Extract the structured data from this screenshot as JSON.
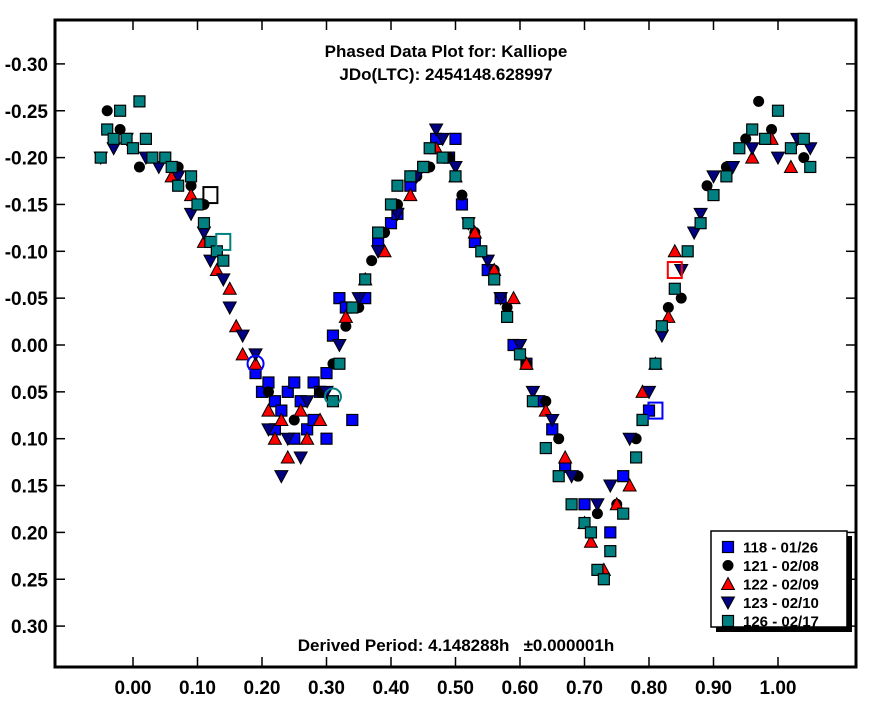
{
  "chart_data": {
    "type": "scatter",
    "title": "Phased Data Plot for: Kalliope",
    "subtitle": "JDo(LTC): 2454148.628997",
    "annotation": "Derived Period: 4.148288h   ±0.000001h",
    "xlabel": "",
    "ylabel": "",
    "xlim": [
      -0.12,
      1.12
    ],
    "ylim": [
      -0.345,
      0.345
    ],
    "y_inverted": true,
    "grid": false,
    "legend_position": "bottom-right",
    "x_ticks": [
      "0.00",
      "0.10",
      "0.20",
      "0.30",
      "0.40",
      "0.50",
      "0.60",
      "0.70",
      "0.80",
      "0.90",
      "1.00"
    ],
    "x_tick_values": [
      0.0,
      0.1,
      0.2,
      0.3,
      0.4,
      0.5,
      0.6,
      0.7,
      0.8,
      0.9,
      1.0
    ],
    "y_ticks": [
      "-0.30",
      "-0.25",
      "-0.20",
      "-0.15",
      "-0.10",
      "-0.05",
      "0.00",
      "0.05",
      "0.10",
      "0.15",
      "0.20",
      "0.25",
      "0.30"
    ],
    "y_tick_values": [
      -0.3,
      -0.25,
      -0.2,
      -0.15,
      -0.1,
      -0.05,
      0.0,
      0.05,
      0.1,
      0.15,
      0.2,
      0.25,
      0.3
    ],
    "series": [
      {
        "name": "118 - 01/26",
        "marker": "square",
        "color": "#0000ff",
        "x": [
          0.19,
          0.2,
          0.21,
          0.22,
          0.22,
          0.23,
          0.24,
          0.25,
          0.25,
          0.26,
          0.27,
          0.28,
          0.28,
          0.29,
          0.3,
          0.3,
          0.31,
          0.32,
          0.33,
          0.34,
          0.36,
          0.38,
          0.4,
          0.41,
          0.43,
          0.45,
          0.47,
          0.49,
          0.5,
          0.51,
          0.53,
          0.55,
          0.57,
          0.59,
          0.61,
          0.63,
          0.65,
          0.67,
          0.7,
          0.74,
          0.76,
          0.79,
          0.8
        ],
        "y": [
          0.03,
          0.05,
          0.04,
          0.09,
          0.06,
          0.07,
          0.05,
          0.1,
          0.04,
          0.06,
          0.09,
          0.04,
          0.08,
          0.05,
          0.03,
          0.1,
          -0.01,
          -0.05,
          -0.04,
          0.08,
          -0.05,
          -0.11,
          -0.13,
          -0.14,
          -0.17,
          -0.19,
          -0.22,
          -0.2,
          -0.22,
          -0.15,
          -0.11,
          -0.08,
          -0.05,
          0.0,
          0.02,
          0.06,
          0.09,
          0.13,
          0.17,
          0.2,
          0.14,
          0.08,
          0.07
        ]
      },
      {
        "name": "121 - 02/08",
        "marker": "circle",
        "color": "#000000",
        "x": [
          -0.04,
          -0.03,
          -0.02,
          0.0,
          0.01,
          0.03,
          0.05,
          0.07,
          0.09,
          0.11,
          0.21,
          0.25,
          0.29,
          0.31,
          0.33,
          0.35,
          0.37,
          0.39,
          0.41,
          0.44,
          0.46,
          0.49,
          0.51,
          0.53,
          0.56,
          0.58,
          0.61,
          0.64,
          0.66,
          0.69,
          0.72,
          0.75,
          0.78,
          0.81,
          0.83,
          0.85,
          0.86,
          0.89,
          0.92,
          0.95,
          0.97,
          0.99,
          1.02,
          1.04
        ],
        "y": [
          -0.25,
          -0.22,
          -0.23,
          -0.21,
          -0.19,
          -0.2,
          -0.2,
          -0.19,
          -0.17,
          -0.15,
          0.05,
          0.08,
          0.05,
          0.02,
          -0.02,
          -0.04,
          -0.09,
          -0.12,
          -0.15,
          -0.18,
          -0.19,
          -0.2,
          -0.16,
          -0.12,
          -0.08,
          -0.04,
          0.02,
          0.06,
          0.1,
          0.14,
          0.18,
          0.17,
          0.1,
          0.02,
          -0.04,
          -0.05,
          -0.1,
          -0.17,
          -0.19,
          -0.22,
          -0.26,
          -0.23,
          -0.21,
          -0.2
        ]
      },
      {
        "name": "122 - 02/09",
        "marker": "triangle-up",
        "color": "#ff0000",
        "x": [
          0.06,
          0.09,
          0.11,
          0.13,
          0.15,
          0.16,
          0.17,
          0.19,
          0.21,
          0.22,
          0.23,
          0.24,
          0.26,
          0.27,
          0.29,
          0.33,
          0.36,
          0.39,
          0.43,
          0.47,
          0.5,
          0.53,
          0.56,
          0.59,
          0.61,
          0.64,
          0.67,
          0.7,
          0.71,
          0.73,
          0.75,
          0.77,
          0.79,
          0.81,
          0.83,
          0.84,
          0.96,
          0.99,
          1.02
        ],
        "y": [
          -0.18,
          -0.16,
          -0.11,
          -0.08,
          -0.06,
          -0.02,
          0.01,
          0.02,
          0.07,
          0.1,
          0.08,
          0.12,
          0.07,
          0.1,
          0.08,
          -0.03,
          -0.07,
          -0.1,
          -0.16,
          -0.21,
          -0.18,
          -0.12,
          -0.08,
          -0.05,
          0.02,
          0.07,
          0.12,
          0.19,
          0.21,
          0.24,
          0.17,
          0.15,
          0.05,
          0.02,
          -0.03,
          -0.1,
          -0.2,
          -0.22,
          -0.19
        ]
      },
      {
        "name": "123 - 02/10",
        "marker": "triangle-down",
        "color": "#000080",
        "x": [
          -0.05,
          -0.03,
          -0.01,
          0.02,
          0.04,
          0.07,
          0.09,
          0.11,
          0.12,
          0.14,
          0.15,
          0.17,
          0.19,
          0.21,
          0.23,
          0.24,
          0.26,
          0.27,
          0.3,
          0.32,
          0.35,
          0.38,
          0.41,
          0.44,
          0.47,
          0.48,
          0.5,
          0.52,
          0.55,
          0.57,
          0.6,
          0.62,
          0.65,
          0.68,
          0.72,
          0.74,
          0.77,
          0.8,
          0.82,
          0.85,
          0.87,
          0.88,
          0.9,
          0.93,
          0.96,
          1.0,
          1.03,
          1.05
        ],
        "y": [
          -0.2,
          -0.21,
          -0.22,
          -0.2,
          -0.19,
          -0.18,
          -0.14,
          -0.12,
          -0.09,
          -0.07,
          -0.04,
          -0.01,
          0.01,
          0.09,
          0.14,
          0.1,
          0.12,
          0.06,
          0.05,
          0.0,
          -0.05,
          -0.1,
          -0.14,
          -0.18,
          -0.23,
          -0.22,
          -0.19,
          -0.13,
          -0.09,
          -0.05,
          0.0,
          0.05,
          0.08,
          0.14,
          0.17,
          0.15,
          0.1,
          0.05,
          -0.01,
          -0.08,
          -0.12,
          -0.14,
          -0.18,
          -0.19,
          -0.21,
          -0.2,
          -0.22,
          -0.21
        ]
      },
      {
        "name": "126 - 02/17",
        "marker": "square",
        "color": "#008080",
        "x": [
          -0.05,
          -0.04,
          -0.03,
          -0.02,
          -0.01,
          0.0,
          0.01,
          0.02,
          0.03,
          0.05,
          0.06,
          0.07,
          0.09,
          0.1,
          0.11,
          0.12,
          0.13,
          0.14,
          0.31,
          0.32,
          0.34,
          0.36,
          0.38,
          0.4,
          0.41,
          0.43,
          0.45,
          0.46,
          0.48,
          0.5,
          0.52,
          0.54,
          0.56,
          0.58,
          0.6,
          0.62,
          0.64,
          0.66,
          0.68,
          0.7,
          0.71,
          0.72,
          0.73,
          0.74,
          0.76,
          0.78,
          0.79,
          0.81,
          0.82,
          0.84,
          0.86,
          0.88,
          0.9,
          0.92,
          0.94,
          0.96,
          0.98,
          1.0,
          1.02,
          1.04,
          1.05
        ],
        "y": [
          -0.2,
          -0.23,
          -0.22,
          -0.25,
          -0.22,
          -0.21,
          -0.26,
          -0.22,
          -0.2,
          -0.2,
          -0.19,
          -0.17,
          -0.18,
          -0.15,
          -0.13,
          -0.11,
          -0.1,
          -0.09,
          0.06,
          0.02,
          -0.04,
          -0.07,
          -0.12,
          -0.15,
          -0.17,
          -0.18,
          -0.19,
          -0.21,
          -0.2,
          -0.18,
          -0.13,
          -0.1,
          -0.07,
          -0.03,
          0.01,
          0.06,
          0.11,
          0.14,
          0.17,
          0.19,
          0.2,
          0.24,
          0.25,
          0.22,
          0.18,
          0.12,
          0.08,
          0.02,
          -0.02,
          -0.06,
          -0.1,
          -0.13,
          -0.16,
          -0.18,
          -0.21,
          -0.23,
          -0.22,
          -0.25,
          -0.21,
          -0.22,
          -0.19
        ]
      }
    ],
    "open_markers": [
      {
        "series": "121 - 02/08",
        "shape": "square",
        "x": 0.12,
        "y": -0.16
      },
      {
        "series": "126 - 02/17",
        "shape": "square",
        "x": 0.14,
        "y": -0.11
      },
      {
        "series": "118 - 01/26",
        "shape": "circle",
        "x": 0.19,
        "y": 0.02
      },
      {
        "series": "126 - 02/17",
        "shape": "circle",
        "x": 0.31,
        "y": 0.055
      },
      {
        "series": "122 - 02/09",
        "shape": "square",
        "x": 0.84,
        "y": -0.08
      },
      {
        "series": "118 - 01/26",
        "shape": "square",
        "x": 0.81,
        "y": 0.07
      }
    ]
  }
}
